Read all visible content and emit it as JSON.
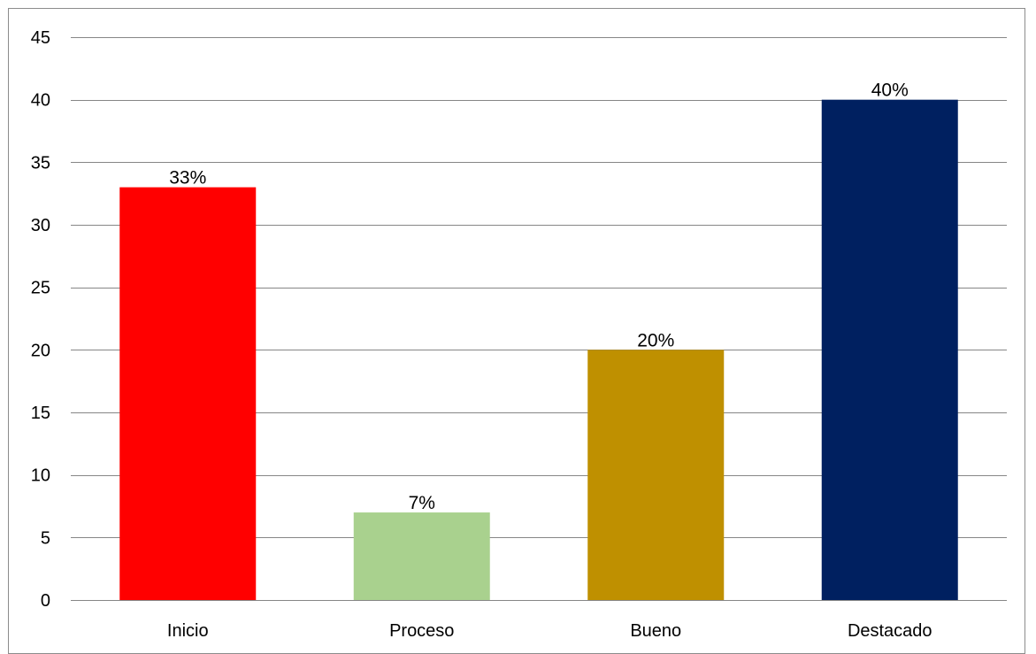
{
  "chart_data": {
    "type": "bar",
    "title": "",
    "xlabel": "",
    "ylabel": "",
    "categories": [
      "Inicio",
      "Proceso",
      "Bueno",
      "Destacado"
    ],
    "values": [
      33,
      7,
      20,
      40
    ],
    "data_labels": [
      "33%",
      "7%",
      "20%",
      "40%"
    ],
    "bar_colors": [
      "#ff0000",
      "#a9d18e",
      "#bf9000",
      "#002060"
    ],
    "ylim": [
      0,
      45
    ],
    "yticks": [
      0,
      5,
      10,
      15,
      20,
      25,
      30,
      35,
      40,
      45
    ],
    "grid": true,
    "legend": "none"
  }
}
